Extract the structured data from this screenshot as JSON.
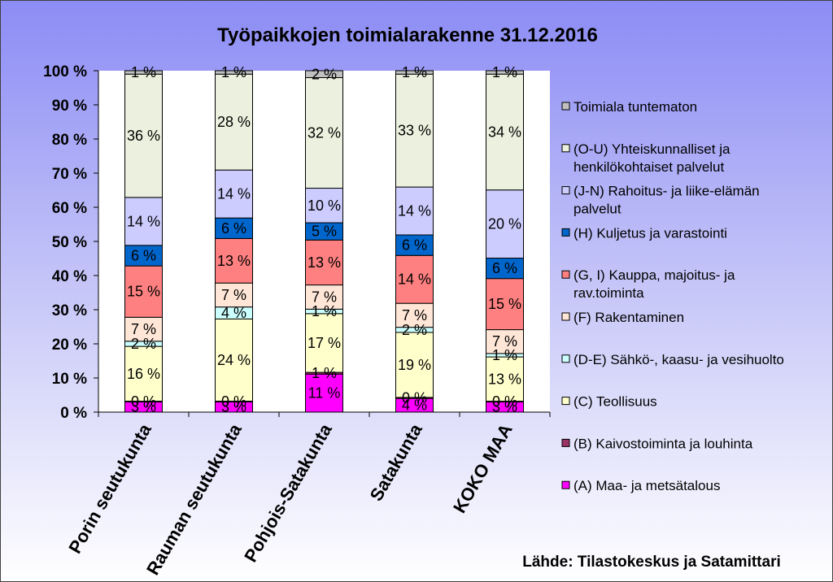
{
  "chart_data": {
    "type": "bar",
    "stacked": true,
    "title": "Työpaikkojen toimialarakenne 31.12.2016",
    "source": "Lähde: Tilastokeskus ja Satamittari",
    "ylim": [
      0,
      100
    ],
    "y_ticks": [
      "0 %",
      "10 %",
      "20 %",
      "30 %",
      "40 %",
      "50 %",
      "60 %",
      "70 %",
      "80 %",
      "90 %",
      "100 %"
    ],
    "grid": false,
    "legend_position": "right",
    "categories": [
      "Porin seutukunta",
      "Rauman seutukunta",
      "Pohjois-Satakunta",
      "Satakunta",
      "KOKO MAA"
    ],
    "series": [
      {
        "name": "(A) Maa- ja metsätalous",
        "color": "#ff00ff",
        "values": [
          3,
          3,
          11,
          4,
          3
        ],
        "labels": [
          "3 %",
          "3 %",
          "11 %",
          "4 %",
          "3 %"
        ]
      },
      {
        "name": "(B) Kaivostoiminta ja louhinta",
        "color": "#993366",
        "values": [
          0.2,
          0.2,
          0.5,
          0.3,
          0.2
        ],
        "labels": [
          "0 %",
          "0 %",
          "1 %",
          "0 %",
          "0 %"
        ]
      },
      {
        "name": "(C) Teollisuus",
        "color": "#ffffcc",
        "values": [
          16,
          24,
          17,
          19,
          13
        ],
        "labels": [
          "16 %",
          "24 %",
          "17 %",
          "19 %",
          "13 %"
        ]
      },
      {
        "name": "(D-E) Sähkö-, kaasu- ja vesihuolto",
        "color": "#ccffff",
        "values": [
          1.5,
          3.5,
          1.3,
          1.5,
          1
        ],
        "labels": [
          "2 %",
          "4 %",
          "1 %",
          "2 %",
          "1 %"
        ]
      },
      {
        "name": "(F) Rakentaminen",
        "color": "#ffe6d6",
        "values": [
          7,
          7,
          7,
          7,
          7
        ],
        "labels": [
          "7 %",
          "7 %",
          "7 %",
          "7 %",
          "7 %"
        ]
      },
      {
        "name": "(G, I) Kauppa, majoitus- ja rav.toiminta",
        "color": "#ff8080",
        "values": [
          15,
          13,
          13,
          14,
          15
        ],
        "labels": [
          "15 %",
          "13 %",
          "13 %",
          "14 %",
          "15 %"
        ]
      },
      {
        "name": "(H) Kuljetus ja varastointi",
        "color": "#0066cc",
        "values": [
          6,
          6,
          5,
          6,
          6
        ],
        "labels": [
          "6 %",
          "6 %",
          "5 %",
          "6 %",
          "6 %"
        ]
      },
      {
        "name": "(J-N) Rahoitus- ja liike-elämän palvelut",
        "color": "#ccccff",
        "values": [
          14,
          14,
          10,
          14,
          20
        ],
        "labels": [
          "14 %",
          "14 %",
          "10 %",
          "14 %",
          "20 %"
        ]
      },
      {
        "name": "(O-U) Yhteiskunnalliset ja henkilökohtaiset palvelut",
        "color": "#ebf1de",
        "values": [
          36,
          28,
          32,
          33,
          34
        ],
        "labels": [
          "36 %",
          "28 %",
          "32 %",
          "33 %",
          "34 %"
        ]
      },
      {
        "name": "Toimiala tuntematon",
        "color": "#c0c0c0",
        "values": [
          1,
          1,
          2,
          1,
          1
        ],
        "labels": [
          "1 %",
          "1 %",
          "2 %",
          "1 %",
          "1 %"
        ]
      }
    ],
    "legend_lines": [
      [
        "Toimiala tuntematon"
      ],
      [
        "(O-U) Yhteiskunnalliset ja",
        "henkilökohtaiset palvelut"
      ],
      [
        "(J-N) Rahoitus- ja liike-elämän",
        "palvelut"
      ],
      [
        "(H) Kuljetus ja varastointi"
      ],
      [
        "(G, I) Kauppa, majoitus- ja",
        "rav.toiminta"
      ],
      [
        "(F) Rakentaminen"
      ],
      [
        "(D-E) Sähkö-, kaasu- ja vesihuolto"
      ],
      [
        "(C) Teollisuus"
      ],
      [
        "(B) Kaivostoiminta ja louhinta"
      ],
      [
        "(A) Maa- ja metsätalous"
      ]
    ]
  }
}
